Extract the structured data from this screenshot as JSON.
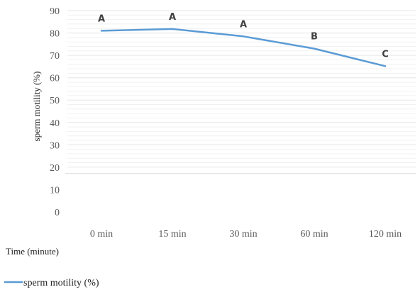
{
  "chart_data": {
    "type": "line",
    "title": "",
    "xlabel": "Time (minute)",
    "ylabel": "sperm motility (%)",
    "categories": [
      "0 min",
      "15 min",
      "30 min",
      "60 min",
      "120 min"
    ],
    "series": [
      {
        "name": "sperm motility (%)",
        "values": [
          81,
          81.8,
          78.5,
          73,
          65.2
        ],
        "labels": [
          "A",
          "A",
          "A",
          "B",
          "C"
        ],
        "color": "#5b9bd5"
      }
    ],
    "ylim": [
      0,
      90
    ],
    "yticks": [
      0,
      10,
      20,
      30,
      40,
      50,
      60,
      70,
      80,
      90
    ],
    "grid": true,
    "legend": "bottom-left"
  }
}
